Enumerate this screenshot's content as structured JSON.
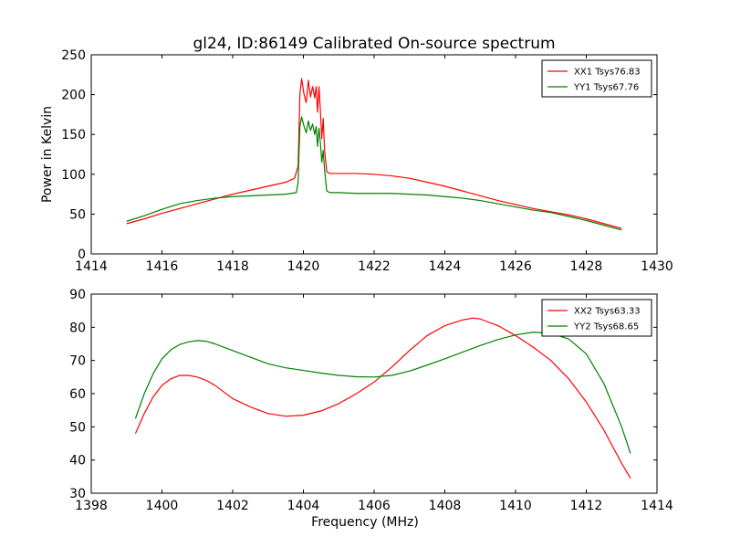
{
  "figure": {
    "title": "gl24, ID:86149 Calibrated On-source spectrum"
  },
  "colors": {
    "XX": "#ff0000",
    "YY": "#008000"
  },
  "chart_data": [
    {
      "type": "line",
      "title": "gl24, ID:86149 Calibrated On-source spectrum",
      "xlabel": "",
      "ylabel": "Power in Kelvin",
      "xlim": [
        1414,
        1430
      ],
      "ylim": [
        0,
        250
      ],
      "xticks": [
        1414,
        1416,
        1418,
        1420,
        1422,
        1424,
        1426,
        1428,
        1430
      ],
      "yticks": [
        0,
        50,
        100,
        150,
        200,
        250
      ],
      "grid": false,
      "legend": "top-right",
      "series": [
        {
          "name": "XX1 Tsys76.83",
          "color": "#ff0000",
          "points": [
            [
              1415.0,
              38
            ],
            [
              1415.5,
              44
            ],
            [
              1416.0,
              51
            ],
            [
              1416.5,
              57
            ],
            [
              1417.0,
              63
            ],
            [
              1417.5,
              69
            ],
            [
              1418.0,
              75
            ],
            [
              1418.5,
              80
            ],
            [
              1419.0,
              85
            ],
            [
              1419.5,
              90
            ],
            [
              1419.75,
              95
            ],
            [
              1419.85,
              110
            ],
            [
              1419.9,
              200
            ],
            [
              1419.95,
              220
            ],
            [
              1420.02,
              200
            ],
            [
              1420.08,
              190
            ],
            [
              1420.14,
              218
            ],
            [
              1420.2,
              197
            ],
            [
              1420.26,
              210
            ],
            [
              1420.32,
              196
            ],
            [
              1420.36,
              210
            ],
            [
              1420.4,
              178
            ],
            [
              1420.44,
              210
            ],
            [
              1420.48,
              180
            ],
            [
              1420.52,
              145
            ],
            [
              1420.56,
              170
            ],
            [
              1420.6,
              130
            ],
            [
              1420.66,
              103
            ],
            [
              1420.75,
              101
            ],
            [
              1421.0,
              101
            ],
            [
              1421.5,
              101
            ],
            [
              1422.0,
              100
            ],
            [
              1422.5,
              98
            ],
            [
              1423.0,
              95
            ],
            [
              1423.5,
              90
            ],
            [
              1424.0,
              85
            ],
            [
              1424.5,
              79
            ],
            [
              1425.0,
              73
            ],
            [
              1425.5,
              67
            ],
            [
              1426.0,
              62
            ],
            [
              1426.5,
              57
            ],
            [
              1427.0,
              53
            ],
            [
              1427.5,
              49
            ],
            [
              1428.0,
              44
            ],
            [
              1428.5,
              38
            ],
            [
              1429.0,
              32
            ]
          ]
        },
        {
          "name": "YY1 Tsys67.76",
          "color": "#008000",
          "points": [
            [
              1415.0,
              41
            ],
            [
              1415.5,
              48
            ],
            [
              1416.0,
              56
            ],
            [
              1416.5,
              63
            ],
            [
              1417.0,
              67
            ],
            [
              1417.5,
              70
            ],
            [
              1418.0,
              72
            ],
            [
              1418.5,
              73
            ],
            [
              1419.0,
              74
            ],
            [
              1419.5,
              75
            ],
            [
              1419.8,
              77
            ],
            [
              1419.85,
              90
            ],
            [
              1419.9,
              160
            ],
            [
              1419.95,
              172
            ],
            [
              1420.02,
              160
            ],
            [
              1420.08,
              152
            ],
            [
              1420.14,
              167
            ],
            [
              1420.2,
              155
            ],
            [
              1420.26,
              163
            ],
            [
              1420.32,
              150
            ],
            [
              1420.36,
              160
            ],
            [
              1420.4,
              135
            ],
            [
              1420.44,
              158
            ],
            [
              1420.48,
              140
            ],
            [
              1420.52,
              115
            ],
            [
              1420.56,
              130
            ],
            [
              1420.6,
              105
            ],
            [
              1420.66,
              79
            ],
            [
              1420.75,
              77
            ],
            [
              1421.0,
              77
            ],
            [
              1421.5,
              76
            ],
            [
              1422.0,
              76
            ],
            [
              1422.5,
              76
            ],
            [
              1423.0,
              75
            ],
            [
              1423.5,
              74
            ],
            [
              1424.0,
              72
            ],
            [
              1424.5,
              70
            ],
            [
              1425.0,
              67
            ],
            [
              1425.5,
              63
            ],
            [
              1426.0,
              59
            ],
            [
              1426.5,
              55
            ],
            [
              1427.0,
              52
            ],
            [
              1427.5,
              47
            ],
            [
              1428.0,
              42
            ],
            [
              1428.5,
              36
            ],
            [
              1429.0,
              30
            ]
          ]
        }
      ]
    },
    {
      "type": "line",
      "title": "",
      "xlabel": "Frequency (MHz)",
      "ylabel": "",
      "xlim": [
        1398,
        1414
      ],
      "ylim": [
        30,
        90
      ],
      "xticks": [
        1398,
        1400,
        1402,
        1404,
        1406,
        1408,
        1410,
        1412,
        1414
      ],
      "yticks": [
        30,
        40,
        50,
        60,
        70,
        80,
        90
      ],
      "grid": false,
      "legend": "top-right",
      "series": [
        {
          "name": "XX2 Tsys63.33",
          "color": "#ff0000",
          "points": [
            [
              1399.25,
              48
            ],
            [
              1399.5,
              54
            ],
            [
              1399.75,
              59
            ],
            [
              1400.0,
              62.5
            ],
            [
              1400.25,
              64.5
            ],
            [
              1400.5,
              65.5
            ],
            [
              1400.75,
              65.5
            ],
            [
              1401.0,
              65
            ],
            [
              1401.25,
              64
            ],
            [
              1401.5,
              62.5
            ],
            [
              1401.75,
              60.5
            ],
            [
              1402.0,
              58.5
            ],
            [
              1402.5,
              56
            ],
            [
              1403.0,
              54
            ],
            [
              1403.5,
              53.2
            ],
            [
              1404.0,
              53.5
            ],
            [
              1404.5,
              54.8
            ],
            [
              1405.0,
              57
            ],
            [
              1405.5,
              60
            ],
            [
              1406.0,
              63.5
            ],
            [
              1406.5,
              68
            ],
            [
              1407.0,
              73
            ],
            [
              1407.5,
              77.5
            ],
            [
              1408.0,
              80.5
            ],
            [
              1408.5,
              82.2
            ],
            [
              1408.8,
              82.8
            ],
            [
              1409.0,
              82.5
            ],
            [
              1409.5,
              80.5
            ],
            [
              1410.0,
              77.5
            ],
            [
              1410.5,
              74
            ],
            [
              1411.0,
              70
            ],
            [
              1411.5,
              64.5
            ],
            [
              1412.0,
              57.5
            ],
            [
              1412.5,
              49
            ],
            [
              1413.0,
              39
            ],
            [
              1413.25,
              34.5
            ]
          ]
        },
        {
          "name": "YY2 Tsys68.65",
          "color": "#008000",
          "points": [
            [
              1399.25,
              52.5
            ],
            [
              1399.5,
              60
            ],
            [
              1399.75,
              66
            ],
            [
              1400.0,
              70.5
            ],
            [
              1400.25,
              73.2
            ],
            [
              1400.5,
              74.8
            ],
            [
              1400.75,
              75.6
            ],
            [
              1401.0,
              76
            ],
            [
              1401.25,
              75.8
            ],
            [
              1401.5,
              75
            ],
            [
              1401.75,
              74
            ],
            [
              1402.0,
              73
            ],
            [
              1402.5,
              71
            ],
            [
              1403.0,
              69
            ],
            [
              1403.5,
              67.8
            ],
            [
              1404.0,
              67
            ],
            [
              1404.5,
              66.2
            ],
            [
              1405.0,
              65.5
            ],
            [
              1405.5,
              65.1
            ],
            [
              1406.0,
              65
            ],
            [
              1406.5,
              65.5
            ],
            [
              1407.0,
              66.8
            ],
            [
              1407.5,
              68.6
            ],
            [
              1408.0,
              70.5
            ],
            [
              1408.5,
              72.5
            ],
            [
              1409.0,
              74.5
            ],
            [
              1409.5,
              76.3
            ],
            [
              1410.0,
              77.7
            ],
            [
              1410.5,
              78.5
            ],
            [
              1411.0,
              78.2
            ],
            [
              1411.5,
              76.5
            ],
            [
              1412.0,
              72
            ],
            [
              1412.5,
              63
            ],
            [
              1413.0,
              50
            ],
            [
              1413.25,
              42
            ]
          ]
        }
      ]
    }
  ]
}
